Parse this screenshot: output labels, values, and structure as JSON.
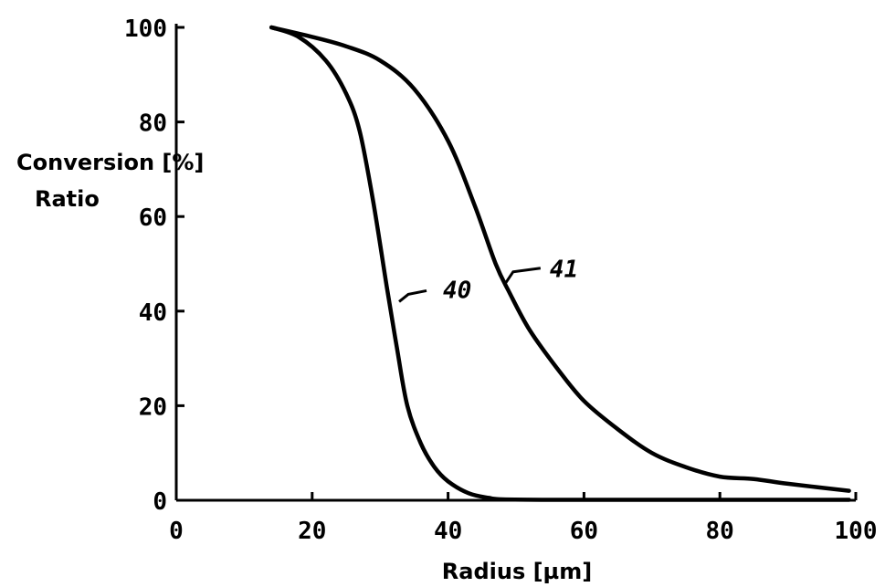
{
  "chart_data": {
    "type": "line",
    "title": "",
    "xlabel": "Radius [µm]",
    "ylabel_line1": "Conversion [%]",
    "ylabel_line2": "Ratio",
    "xlim": [
      0,
      100
    ],
    "ylim": [
      0,
      100
    ],
    "x_ticks": [
      0,
      20,
      40,
      60,
      80,
      100
    ],
    "y_ticks": [
      0,
      20,
      40,
      60,
      80,
      100
    ],
    "grid": false,
    "series": [
      {
        "name": "40",
        "x": [
          14,
          18,
          22,
          25,
          27,
          29,
          31,
          32.5,
          34,
          36,
          38,
          40,
          43,
          46,
          48,
          55,
          70,
          85,
          99
        ],
        "y": [
          100,
          98,
          93,
          86,
          78,
          63,
          45,
          32,
          20,
          12,
          7,
          4,
          1.5,
          0.5,
          0.2,
          0.1,
          0.1,
          0.1,
          0.1
        ]
      },
      {
        "name": "41",
        "x": [
          14,
          20,
          25,
          30,
          35,
          40,
          44,
          47,
          49,
          52,
          56,
          60,
          65,
          70,
          75,
          80,
          85,
          90,
          99
        ],
        "y": [
          100,
          98,
          96,
          93,
          87,
          76,
          62,
          50,
          44,
          36,
          28,
          21,
          15,
          10,
          7,
          5,
          4.5,
          3.5,
          2
        ]
      }
    ]
  }
}
